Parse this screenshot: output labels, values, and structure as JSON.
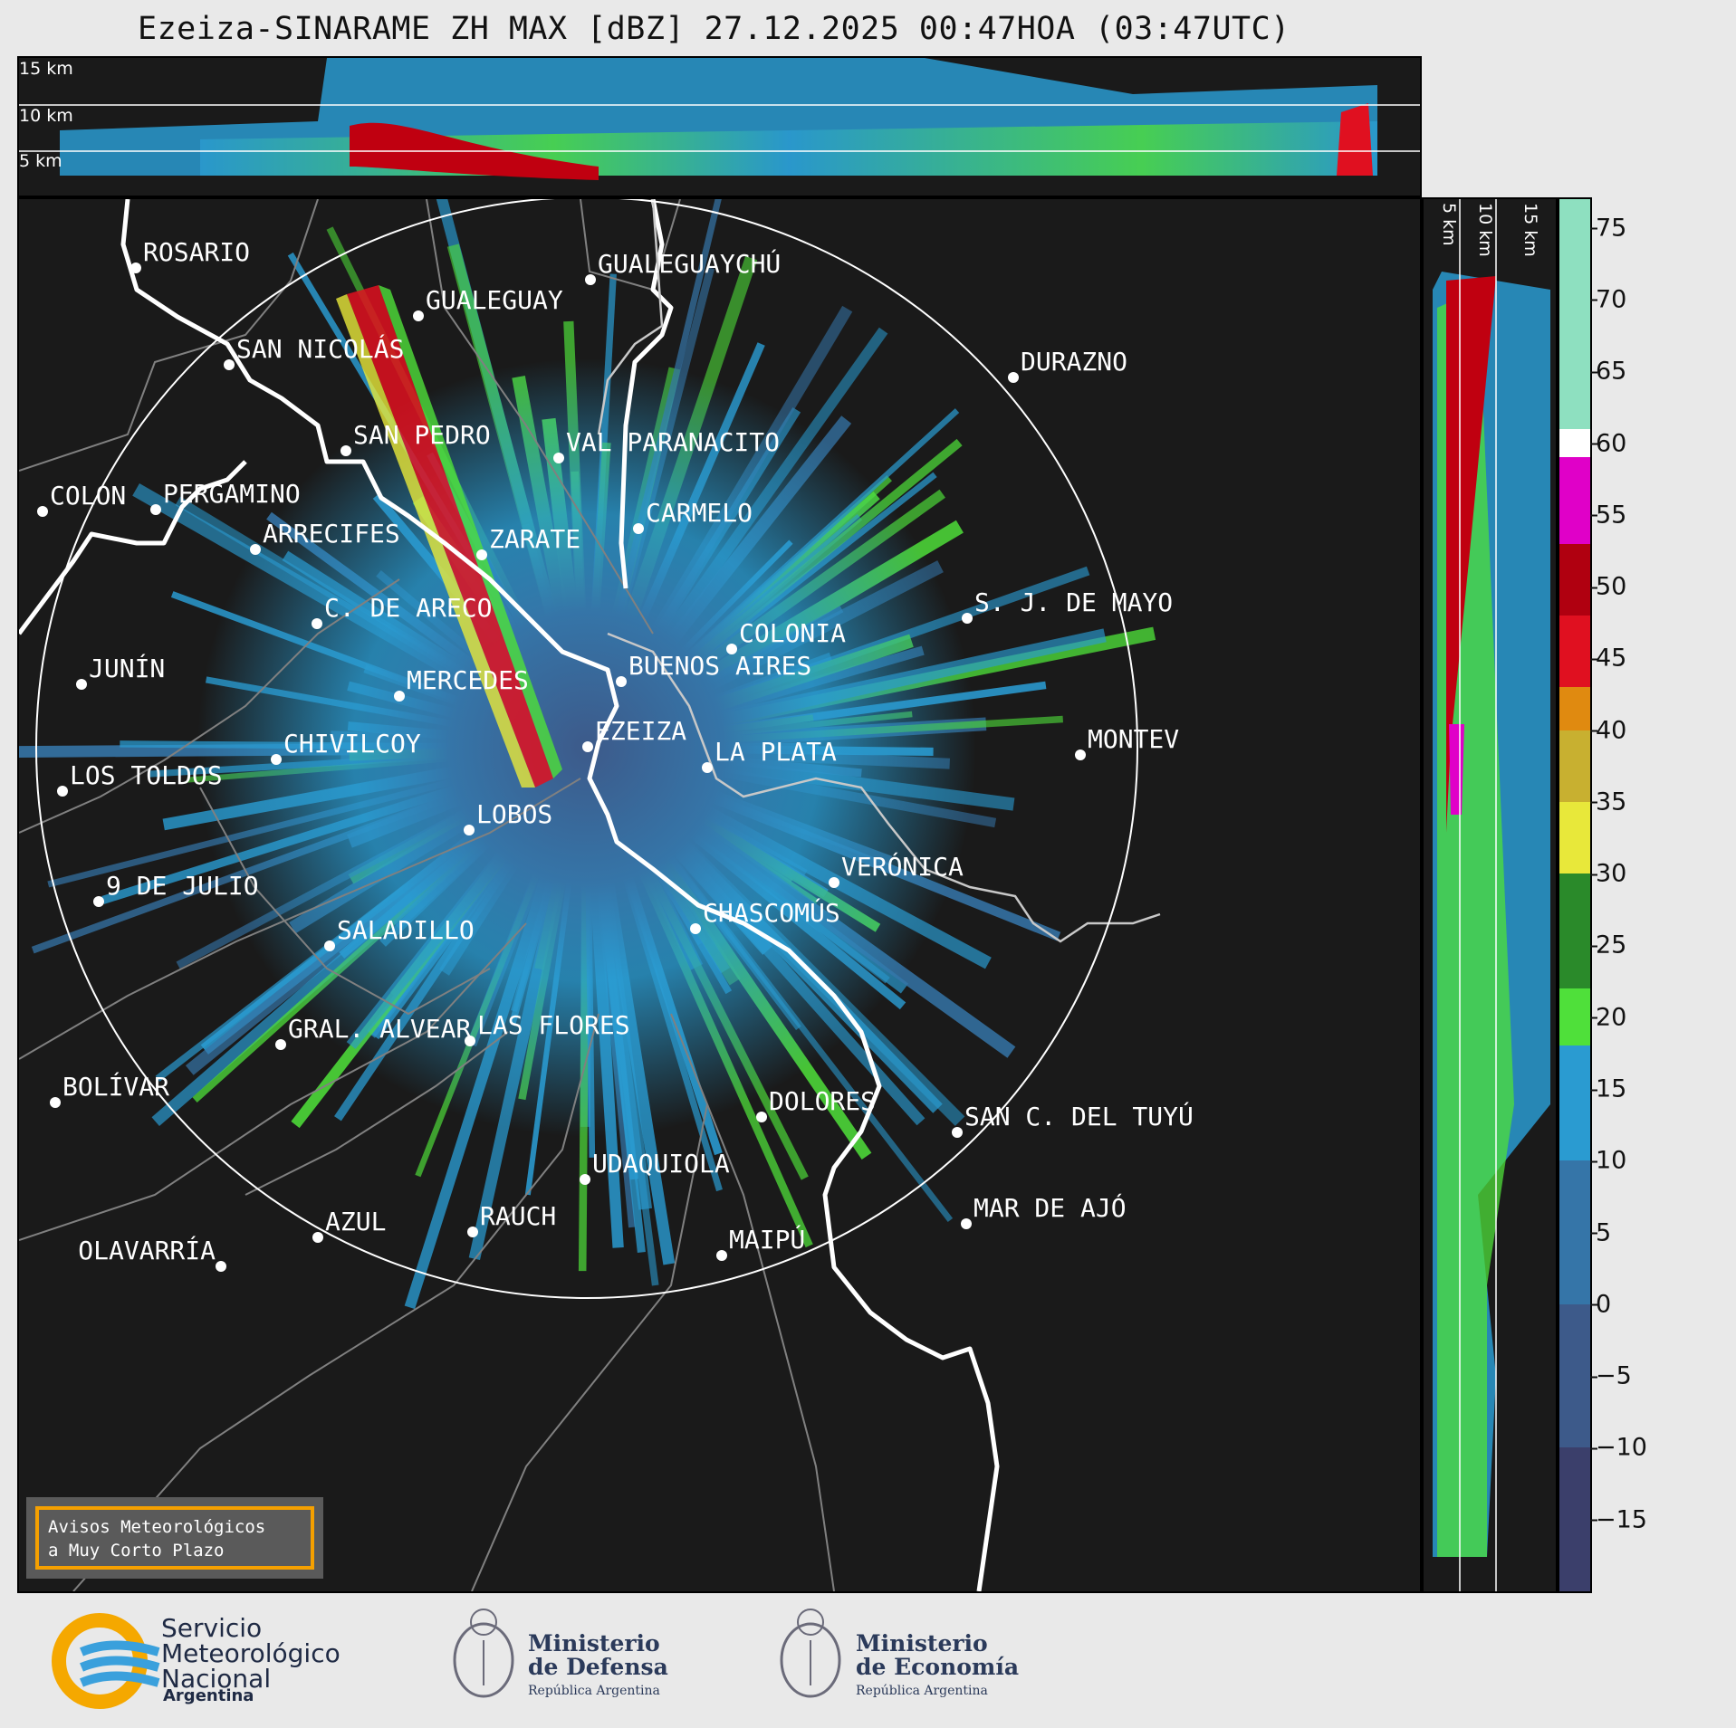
{
  "title": "Ezeiza-SINARAME ZH MAX [dBZ] 27.12.2025 00:47HOA (03:47UTC)",
  "top_panel_labels": [
    "15 km",
    "10 km",
    "5 km"
  ],
  "side_panel_labels": [
    "5 km",
    "10 km",
    "15 km"
  ],
  "cities": [
    {
      "name": "ROSARIO"
    },
    {
      "name": "GUALEGUAYCHÚ"
    },
    {
      "name": "GUALEGUAY"
    },
    {
      "name": "SAN NICOLÁS"
    },
    {
      "name": "DURAZNO"
    },
    {
      "name": "SAN PEDRO"
    },
    {
      "name": "VAL PARANACITO"
    },
    {
      "name": "COLON"
    },
    {
      "name": "PERGAMINO"
    },
    {
      "name": "CARMELO"
    },
    {
      "name": "ARRECIFES"
    },
    {
      "name": "ZARATE"
    },
    {
      "name": "S. J. DE MAYO"
    },
    {
      "name": "C. DE ARECO"
    },
    {
      "name": "COLONIA"
    },
    {
      "name": "JUNÍN"
    },
    {
      "name": "BUENOS AIRES"
    },
    {
      "name": "MERCEDES"
    },
    {
      "name": "MONTEV"
    },
    {
      "name": "EZEIZA"
    },
    {
      "name": "CHIVILCOY"
    },
    {
      "name": "LA PLATA"
    },
    {
      "name": "LOS TOLDOS"
    },
    {
      "name": "LOBOS"
    },
    {
      "name": "VERÓNICA"
    },
    {
      "name": "9 DE JULIO"
    },
    {
      "name": "CHASCOMÚS"
    },
    {
      "name": "SALADILLO"
    },
    {
      "name": "GRAL. ALVEAR"
    },
    {
      "name": "LAS FLORES"
    },
    {
      "name": "BOLÍVAR"
    },
    {
      "name": "DOLORES"
    },
    {
      "name": "SAN C. DEL TUYÚ"
    },
    {
      "name": "UDAQUIOLA"
    },
    {
      "name": "MAR DE AJÓ"
    },
    {
      "name": "AZUL"
    },
    {
      "name": "RAUCH"
    },
    {
      "name": "MAIPÚ"
    },
    {
      "name": "OLAVARRÍA"
    }
  ],
  "colorbar": {
    "unit": "dBZ",
    "ticks": [
      "75",
      "70",
      "65",
      "60",
      "55",
      "50",
      "45",
      "40",
      "35",
      "30",
      "25",
      "20",
      "15",
      "10",
      "5",
      "0",
      "−5",
      "−10",
      "−15"
    ],
    "tick_values": [
      75,
      70,
      65,
      60,
      55,
      50,
      45,
      40,
      35,
      30,
      25,
      20,
      15,
      10,
      5,
      0,
      -5,
      -10,
      -15
    ],
    "range": [
      -20,
      77
    ],
    "bands": [
      {
        "from": -20,
        "to": -10,
        "color": "#3b3f6b"
      },
      {
        "from": -10,
        "to": 0,
        "color": "#3d5a8a"
      },
      {
        "from": 0,
        "to": 10,
        "color": "#3575a8"
      },
      {
        "from": 10,
        "to": 18,
        "color": "#2a9bd1"
      },
      {
        "from": 18,
        "to": 22,
        "color": "#4fe03a"
      },
      {
        "from": 22,
        "to": 30,
        "color": "#2a8a2a"
      },
      {
        "from": 30,
        "to": 35,
        "color": "#e8e83a"
      },
      {
        "from": 35,
        "to": 40,
        "color": "#c8b030"
      },
      {
        "from": 40,
        "to": 43,
        "color": "#e08a10"
      },
      {
        "from": 43,
        "to": 48,
        "color": "#e01020"
      },
      {
        "from": 48,
        "to": 53,
        "color": "#b00010"
      },
      {
        "from": 53,
        "to": 59,
        "color": "#e000c8"
      },
      {
        "from": 59,
        "to": 61,
        "color": "#ffffff"
      },
      {
        "from": 61,
        "to": 77,
        "color": "#8ee0c0"
      }
    ]
  },
  "warning_box": {
    "line1": "Avisos Meteorológicos",
    "line2": "a Muy Corto Plazo"
  },
  "footer": {
    "smn": {
      "line1": "Servicio",
      "line2": "Meteorológico",
      "line3": "Nacional",
      "sub": "Argentina"
    },
    "defensa": {
      "line1": "Ministerio",
      "line2": "de Defensa",
      "sub": "República Argentina"
    },
    "economia": {
      "line1": "Ministerio",
      "line2": "de Economía",
      "sub": "República Argentina"
    }
  },
  "colors": {
    "background": "#1a1a1a",
    "range_ring": "#ffffff",
    "coast": "#ffffff",
    "borders": "#808080"
  }
}
